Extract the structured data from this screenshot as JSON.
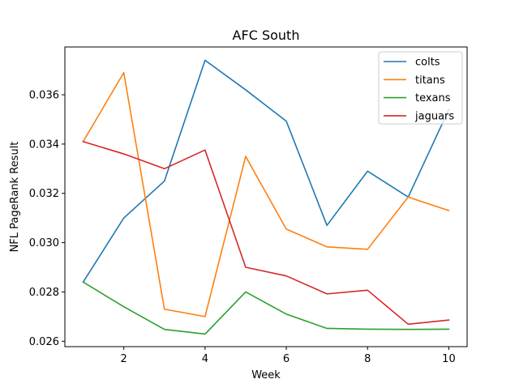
{
  "chart_data": {
    "type": "line",
    "title": "AFC South",
    "xlabel": "Week",
    "ylabel": "NFL PageRank Result",
    "xlim": [
      0.55,
      10.45
    ],
    "ylim": [
      0.02578,
      0.03794
    ],
    "x_ticks": [
      2,
      4,
      6,
      8,
      10
    ],
    "x_tick_labels": [
      "2",
      "4",
      "6",
      "8",
      "10"
    ],
    "y_ticks": [
      0.026,
      0.028,
      0.03,
      0.032,
      0.034,
      0.036
    ],
    "y_tick_labels": [
      "0.026",
      "0.028",
      "0.030",
      "0.032",
      "0.034",
      "0.036"
    ],
    "x": [
      1,
      2,
      3,
      4,
      5,
      6,
      7,
      8,
      9,
      10
    ],
    "legend_position": "top-right",
    "grid": false,
    "series": [
      {
        "name": "colts",
        "color": "#1f77b4",
        "values": [
          0.0284,
          0.031,
          0.0325,
          0.0374,
          0.0362,
          0.03493,
          0.0307,
          0.0329,
          0.03185,
          0.0354
        ]
      },
      {
        "name": "titans",
        "color": "#ff7f0e",
        "values": [
          0.0341,
          0.0369,
          0.0273,
          0.027,
          0.0335,
          0.03055,
          0.02983,
          0.02973,
          0.03185,
          0.0313
        ]
      },
      {
        "name": "texans",
        "color": "#2ca02c",
        "values": [
          0.0284,
          0.0274,
          0.02648,
          0.02629,
          0.028,
          0.0271,
          0.02652,
          0.02649,
          0.02648,
          0.02649
        ]
      },
      {
        "name": "jaguars",
        "color": "#d62728",
        "values": [
          0.0341,
          0.0336,
          0.033,
          0.03376,
          0.029,
          0.02865,
          0.02792,
          0.02807,
          0.02669,
          0.02686
        ]
      }
    ]
  }
}
